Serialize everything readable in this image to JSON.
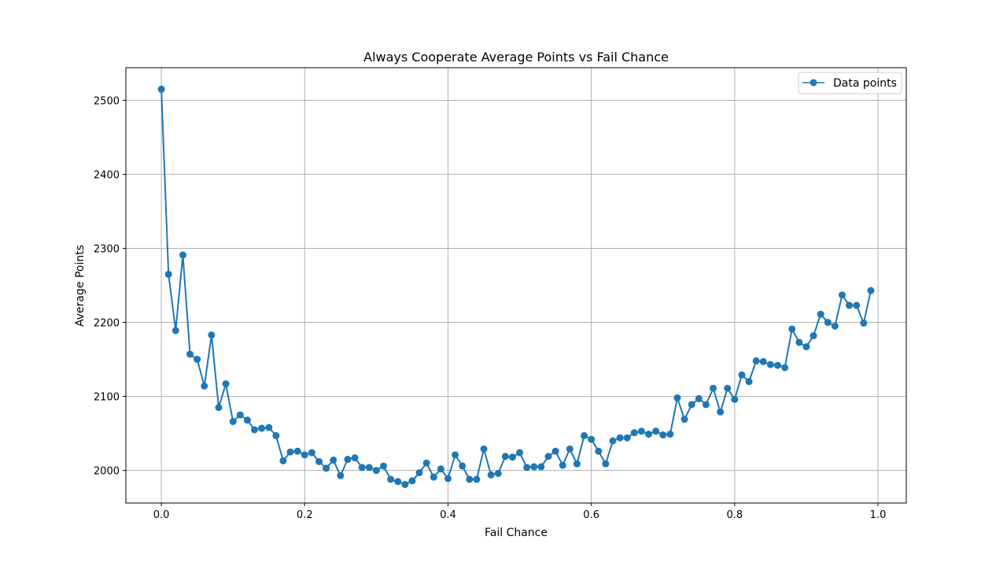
{
  "chart_data": {
    "type": "line",
    "title": "Always Cooperate Average Points vs Fail Chance",
    "xlabel": "Fail Chance",
    "ylabel": "Average Points",
    "xlim": [
      -0.0495,
      1.0395
    ],
    "ylim": [
      1956,
      2544
    ],
    "xticks": [
      "0.0",
      "0.2",
      "0.4",
      "0.6",
      "0.8",
      "1.0"
    ],
    "yticks": [
      "2000",
      "2100",
      "2200",
      "2300",
      "2400",
      "2500"
    ],
    "grid": true,
    "legend_position": "upper right",
    "color": "#1f77b4",
    "series": [
      {
        "name": "Data points",
        "x": [
          0.0,
          0.01,
          0.02,
          0.03,
          0.04,
          0.05,
          0.06,
          0.07,
          0.08,
          0.09,
          0.1,
          0.11,
          0.12,
          0.13,
          0.14,
          0.15,
          0.16,
          0.17,
          0.18,
          0.19,
          0.2,
          0.21,
          0.22,
          0.23,
          0.24,
          0.25,
          0.26,
          0.27,
          0.28,
          0.29,
          0.3,
          0.31,
          0.32,
          0.33,
          0.34,
          0.35,
          0.36,
          0.37,
          0.38,
          0.39,
          0.4,
          0.41,
          0.42,
          0.43,
          0.44,
          0.45,
          0.46,
          0.47,
          0.48,
          0.49,
          0.5,
          0.51,
          0.52,
          0.53,
          0.54,
          0.55,
          0.56,
          0.57,
          0.58,
          0.59,
          0.6,
          0.61,
          0.62,
          0.63,
          0.64,
          0.65,
          0.66,
          0.67,
          0.68,
          0.69,
          0.7,
          0.71,
          0.72,
          0.73,
          0.74,
          0.75,
          0.76,
          0.77,
          0.78,
          0.79,
          0.8,
          0.81,
          0.82,
          0.83,
          0.84,
          0.85,
          0.86,
          0.87,
          0.88,
          0.89,
          0.9,
          0.91,
          0.92,
          0.93,
          0.94,
          0.95,
          0.96,
          0.97,
          0.98,
          0.99
        ],
        "y": [
          2515,
          2265,
          2189,
          2291,
          2157,
          2150,
          2114,
          2183,
          2085,
          2117,
          2066,
          2075,
          2068,
          2055,
          2057,
          2058,
          2047,
          2013,
          2025,
          2026,
          2021,
          2024,
          2012,
          2003,
          2014,
          1993,
          2015,
          2017,
          2004,
          2004,
          2000,
          2006,
          1988,
          1985,
          1981,
          1986,
          1997,
          2010,
          1991,
          2002,
          1989,
          2021,
          2006,
          1988,
          1988,
          2029,
          1994,
          1996,
          2019,
          2018,
          2024,
          2004,
          2005,
          2005,
          2019,
          2026,
          2007,
          2029,
          2009,
          2047,
          2042,
          2026,
          2009,
          2040,
          2044,
          2044,
          2051,
          2053,
          2049,
          2053,
          2048,
          2049,
          2098,
          2069,
          2089,
          2097,
          2089,
          2111,
          2079,
          2111,
          2096,
          2129,
          2120,
          2148,
          2147,
          2143,
          2142,
          2139,
          2191,
          2173,
          2167,
          2182,
          2211,
          2200,
          2195,
          2237,
          2223,
          2223,
          2199,
          2243
        ]
      }
    ]
  }
}
